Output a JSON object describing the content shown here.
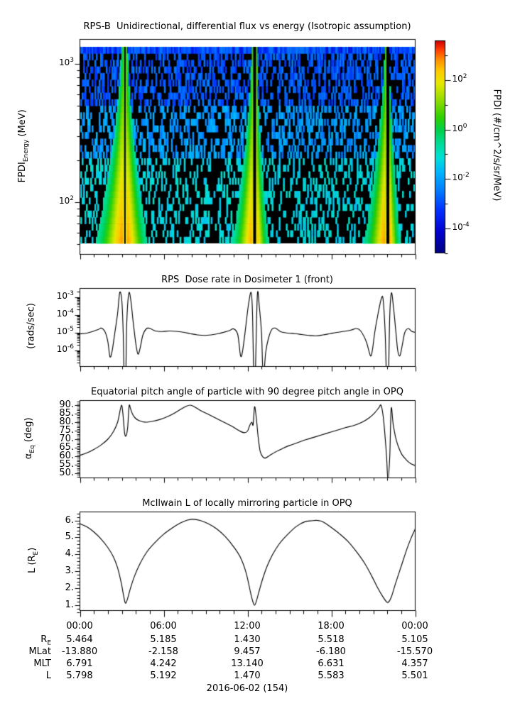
{
  "xaxis": {
    "tick_labels": [
      "00:00",
      "06:00",
      "12:00",
      "18:00",
      "00:00"
    ],
    "tick_hours": [
      0,
      6,
      12,
      18,
      24
    ],
    "minor_tick_interval_hours": 1
  },
  "footer": {
    "date_label": "2016-06-02 (154)"
  },
  "ephemeris": {
    "rows": [
      {
        "label": "R",
        "sub": "E",
        "values": [
          "5.464",
          "5.185",
          "1.430",
          "5.518",
          "5.105"
        ]
      },
      {
        "label": "MLat",
        "sub": "",
        "values": [
          "-13.880",
          "-2.158",
          "9.457",
          "-6.180",
          "-15.570"
        ]
      },
      {
        "label": "MLT",
        "sub": "",
        "values": [
          "6.791",
          "4.242",
          "13.140",
          "6.631",
          "4.357"
        ]
      },
      {
        "label": "L",
        "sub": "",
        "values": [
          "5.798",
          "5.192",
          "1.470",
          "5.583",
          "5.501"
        ]
      }
    ]
  },
  "chart_data": [
    {
      "id": "flux_spectrogram",
      "type": "heatmap",
      "title": "RPS-B  Unidirectional, differential flux vs energy (Isotropic assumption)",
      "ylabel": {
        "base": "FPDI",
        "sub": "Energy",
        "rest": " (MeV)"
      },
      "ytick_exponents": [
        3,
        2
      ],
      "x_range_hours": [
        0,
        24
      ],
      "energy_range_mev": [
        50,
        1400
      ],
      "y_scale": "log",
      "energy_bins": 30,
      "time_columns": 236,
      "colorbar": {
        "label": "FPDI (#/cm^2/s/sr/MeV)",
        "tick_exponents": [
          2,
          0,
          -2,
          -4
        ],
        "value_range_log10": [
          -5,
          3.6
        ],
        "colormap": "rainbow"
      },
      "perigee_passes": [
        {
          "perigee_hours": 3.2,
          "halfwidth_left_hours": 1.05,
          "halfwidth_right_hours": 0.8
        },
        {
          "perigee_hours": 12.5,
          "halfwidth_left_hours": 0.8,
          "halfwidth_right_hours": 0.5
        },
        {
          "perigee_hours": 22.05,
          "halfwidth_left_hours": 0.85,
          "halfwidth_right_hours": 0.45
        }
      ],
      "perigee_gap_halfwidth_hours": 0.085,
      "background": "black with sparse blue/cyan noise bins; solid blue band in top energy bin"
    },
    {
      "id": "dose_rate",
      "type": "line",
      "title": "RPS  Dose rate in Dosimeter 1 (front)",
      "ylabel": "(rads/sec)",
      "y_scale": "log",
      "ytick_exponents": [
        -3,
        -4,
        -5,
        -6
      ],
      "x_hours": [
        0,
        0.5,
        0.9,
        1.3,
        1.55,
        1.8,
        2.0,
        2.15,
        2.3,
        2.5,
        2.7,
        2.85,
        3.0,
        3.1,
        3.17,
        3.28,
        3.35,
        3.5,
        3.65,
        3.8,
        4.0,
        4.15,
        4.3,
        4.5,
        4.75,
        5.0,
        5.4,
        5.9,
        6.4,
        6.9,
        7.4,
        7.9,
        8.4,
        8.9,
        9.4,
        9.9,
        10.3,
        10.7,
        11.0,
        11.3,
        11.5,
        11.65,
        11.85,
        12.05,
        12.25,
        12.35,
        12.45,
        12.55,
        12.7,
        12.85,
        13.0,
        13.12,
        13.3,
        13.5,
        13.75,
        14.0,
        14.4,
        14.9,
        15.4,
        15.9,
        16.4,
        16.9,
        17.4,
        17.9,
        18.4,
        18.9,
        19.4,
        19.8,
        20.1,
        20.5,
        20.8,
        20.95,
        21.1,
        21.3,
        21.55,
        21.7,
        21.85,
        21.95,
        22.08,
        22.18,
        22.3,
        22.45,
        22.6,
        22.75,
        22.9,
        23.05,
        23.25,
        23.5,
        23.75,
        24
      ],
      "log10_rads_per_sec": [
        -5.06,
        -5.02,
        -4.93,
        -4.82,
        -4.74,
        -4.95,
        -5.5,
        -6.35,
        -6.05,
        -5.0,
        -3.9,
        -2.73,
        -3.2,
        -5.0,
        -7.5,
        -7.5,
        -4.5,
        -2.78,
        -3.2,
        -4.3,
        -5.6,
        -6.2,
        -5.9,
        -5.15,
        -4.78,
        -4.75,
        -4.9,
        -4.93,
        -4.9,
        -4.92,
        -4.97,
        -5.05,
        -5.12,
        -5.15,
        -5.12,
        -5.05,
        -4.97,
        -4.88,
        -4.78,
        -5.1,
        -6.3,
        -6.0,
        -4.8,
        -3.5,
        -2.72,
        -3.8,
        -7.5,
        -7.5,
        -2.88,
        -3.6,
        -5.0,
        -7.5,
        -6.1,
        -5.3,
        -4.8,
        -4.74,
        -4.95,
        -5.02,
        -5.05,
        -5.1,
        -5.15,
        -5.17,
        -5.12,
        -5.05,
        -4.98,
        -4.92,
        -4.85,
        -4.76,
        -4.9,
        -5.5,
        -6.3,
        -5.9,
        -5.0,
        -4.1,
        -3.15,
        -3.1,
        -5.0,
        -7.5,
        -7.5,
        -4.0,
        -2.75,
        -3.6,
        -4.8,
        -6.0,
        -6.3,
        -5.8,
        -5.0,
        -4.76,
        -4.92,
        -4.98
      ]
    },
    {
      "id": "equatorial_pitch_angle",
      "type": "line",
      "title": "Equatorial pitch angle of particle with 90 degree pitch angle in OPQ",
      "ylabel": {
        "base": "α",
        "sub": "Eq",
        "rest": " (deg)"
      },
      "ytick_labels": [
        "90.",
        "85.",
        "80.",
        "75.",
        "70.",
        "65.",
        "60.",
        "55.",
        "50."
      ],
      "ytick_values": [
        90,
        85,
        80,
        75,
        70,
        65,
        60,
        55,
        50
      ],
      "x_hours": [
        0,
        0.5,
        1.0,
        1.5,
        2.0,
        2.4,
        2.7,
        2.88,
        3.0,
        3.1,
        3.2,
        3.3,
        3.42,
        3.52,
        3.62,
        3.75,
        3.95,
        4.2,
        4.5,
        4.8,
        5.2,
        5.7,
        6.2,
        6.7,
        7.2,
        7.6,
        7.9,
        8.2,
        8.6,
        9.1,
        9.7,
        10.3,
        10.9,
        11.4,
        11.75,
        12.0,
        12.15,
        12.3,
        12.4,
        12.5,
        12.62,
        12.75,
        12.9,
        13.1,
        13.3,
        13.6,
        14.0,
        14.5,
        15.0,
        15.6,
        16.2,
        16.9,
        17.6,
        18.3,
        19.0,
        19.6,
        20.2,
        20.7,
        21.1,
        21.4,
        21.55,
        21.7,
        21.82,
        21.95,
        22.05,
        22.18,
        22.28,
        22.42,
        22.6,
        22.8,
        23.05,
        23.35,
        23.65,
        24
      ],
      "values_deg": [
        60.5,
        62,
        64,
        66.5,
        70,
        74.5,
        80,
        87,
        89.8,
        83,
        73.5,
        72,
        77,
        89.5,
        88,
        85,
        82.5,
        81,
        80.2,
        80,
        80.5,
        81.5,
        83,
        85,
        87.5,
        89.3,
        90,
        89,
        87,
        85,
        82.5,
        80,
        77.5,
        75,
        73.8,
        74.8,
        78,
        80,
        78.5,
        89,
        83,
        72,
        63,
        59.5,
        59,
        60.5,
        62.5,
        64.5,
        66.3,
        68,
        69.8,
        71.5,
        73.3,
        75,
        76.8,
        78,
        80,
        82.5,
        85.5,
        88.5,
        90,
        84,
        74,
        60,
        46,
        60,
        88,
        79,
        71,
        65.5,
        61,
        58,
        55.8,
        54.5
      ]
    },
    {
      "id": "mcilwain_l",
      "type": "line",
      "title": "McIlwain L of locally mirroring particle in OPQ",
      "ylabel": {
        "base": "L (R",
        "sub": "E",
        "rest": ")"
      },
      "ytick_labels": [
        "6.",
        "5.",
        "4.",
        "3.",
        "2.",
        "1."
      ],
      "ytick_values": [
        6,
        5,
        4,
        3,
        2,
        1
      ],
      "x_hours": [
        0,
        0.5,
        1.0,
        1.5,
        2.0,
        2.4,
        2.7,
        2.95,
        3.12,
        3.25,
        3.4,
        3.6,
        3.9,
        4.3,
        4.8,
        5.4,
        6.0,
        6.6,
        7.2,
        7.7,
        8.1,
        8.6,
        9.2,
        9.8,
        10.4,
        11.0,
        11.5,
        11.9,
        12.2,
        12.35,
        12.5,
        12.65,
        12.85,
        13.1,
        13.4,
        13.8,
        14.3,
        14.9,
        15.5,
        16.1,
        16.6,
        17.0,
        17.4,
        18.0,
        18.6,
        19.2,
        19.8,
        20.4,
        20.9,
        21.3,
        21.65,
        21.9,
        22.07,
        22.3,
        22.6,
        23.0,
        23.4,
        23.7,
        24
      ],
      "values_re": [
        5.8,
        5.62,
        5.32,
        4.92,
        4.4,
        3.85,
        3.2,
        2.35,
        1.6,
        1.13,
        1.35,
        1.95,
        2.7,
        3.45,
        4.15,
        4.72,
        5.19,
        5.55,
        5.85,
        6.02,
        6.07,
        6.0,
        5.8,
        5.5,
        5.05,
        4.45,
        3.8,
        2.9,
        1.8,
        1.3,
        1.0,
        1.3,
        1.9,
        2.6,
        3.3,
        4.0,
        4.65,
        5.2,
        5.65,
        5.92,
        5.98,
        6.0,
        5.92,
        5.58,
        5.2,
        4.75,
        4.15,
        3.45,
        2.7,
        2.05,
        1.55,
        1.25,
        1.17,
        1.5,
        2.3,
        3.3,
        4.3,
        4.95,
        5.5
      ]
    }
  ]
}
